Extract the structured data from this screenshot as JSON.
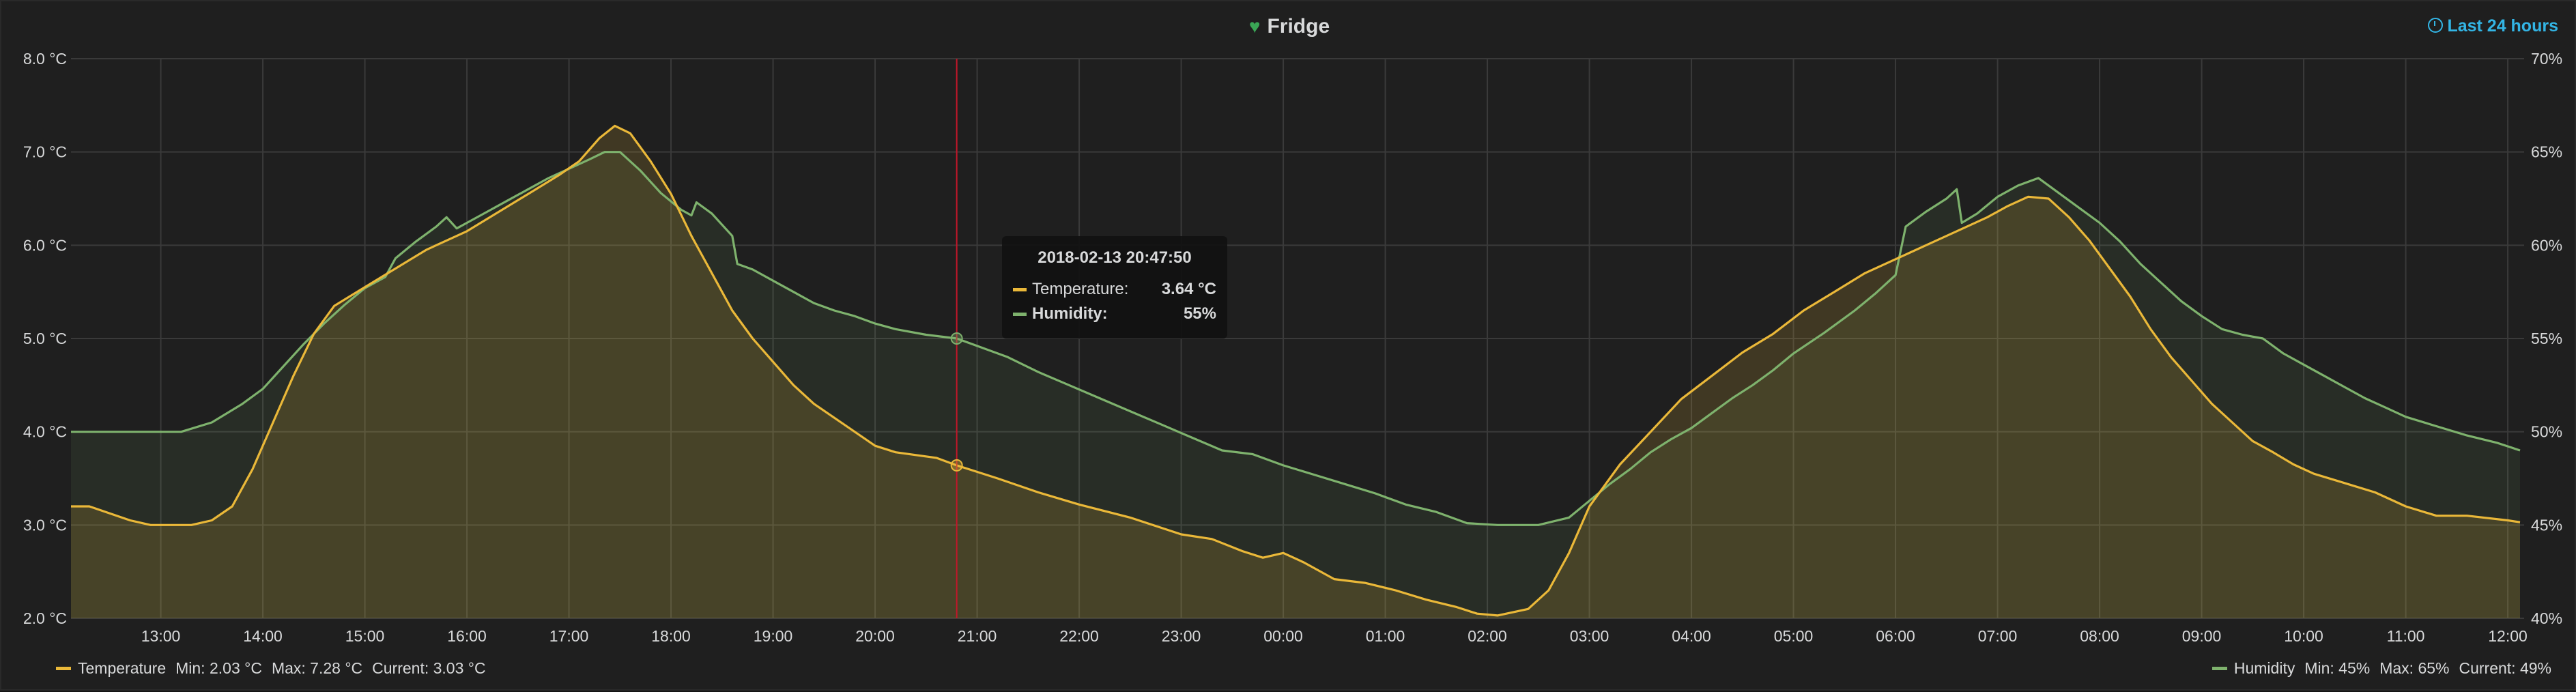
{
  "panel": {
    "title": "Fridge",
    "time_range": "Last 24 hours"
  },
  "colors": {
    "temperature": "#eab839",
    "humidity": "#7eb26d",
    "cursor": "#c4162a",
    "heart": "#3aa655",
    "link": "#33b5e5"
  },
  "tooltip": {
    "time": "2018-02-13 20:47:50",
    "temperature_label": "Temperature:",
    "temperature_value": "3.64 °C",
    "humidity_label": "Humidity:",
    "humidity_value": "55%"
  },
  "legend": {
    "temperature": {
      "name": "Temperature",
      "min": "Min: 2.03 °C",
      "max": "Max: 7.28 °C",
      "current": "Current: 3.03 °C"
    },
    "humidity": {
      "name": "Humidity",
      "min": "Min: 45%",
      "max": "Max: 65%",
      "current": "Current: 49%"
    }
  },
  "chart_data": {
    "type": "area",
    "title": "Fridge",
    "x_unit": "hours since 12:00",
    "x_range": [
      0.12,
      24.26
    ],
    "y_left": {
      "unit": "°C",
      "range": [
        2,
        8
      ],
      "ticks": [
        "2.0 °C",
        "3.0 °C",
        "4.0 °C",
        "5.0 °C",
        "6.0 °C",
        "7.0 °C",
        "8.0 °C"
      ]
    },
    "y_right": {
      "unit": "%",
      "range": [
        40,
        70
      ],
      "ticks": [
        "40%",
        "45%",
        "50%",
        "55%",
        "60%",
        "65%",
        "70%"
      ]
    },
    "x_ticks": [
      {
        "x": 1,
        "label": "13:00"
      },
      {
        "x": 2,
        "label": "14:00"
      },
      {
        "x": 3,
        "label": "15:00"
      },
      {
        "x": 4,
        "label": "16:00"
      },
      {
        "x": 5,
        "label": "17:00"
      },
      {
        "x": 6,
        "label": "18:00"
      },
      {
        "x": 7,
        "label": "19:00"
      },
      {
        "x": 8,
        "label": "20:00"
      },
      {
        "x": 9,
        "label": "21:00"
      },
      {
        "x": 10,
        "label": "22:00"
      },
      {
        "x": 11,
        "label": "23:00"
      },
      {
        "x": 12,
        "label": "00:00"
      },
      {
        "x": 13,
        "label": "01:00"
      },
      {
        "x": 14,
        "label": "02:00"
      },
      {
        "x": 15,
        "label": "03:00"
      },
      {
        "x": 16,
        "label": "04:00"
      },
      {
        "x": 17,
        "label": "05:00"
      },
      {
        "x": 18,
        "label": "06:00"
      },
      {
        "x": 19,
        "label": "07:00"
      },
      {
        "x": 20,
        "label": "08:00"
      },
      {
        "x": 21,
        "label": "09:00"
      },
      {
        "x": 22,
        "label": "10:00"
      },
      {
        "x": 23,
        "label": "11:00"
      },
      {
        "x": 24,
        "label": "12:00"
      }
    ],
    "cursor_x": 8.8,
    "series": [
      {
        "name": "Temperature",
        "axis": "left",
        "points": [
          [
            0.12,
            3.2
          ],
          [
            0.3,
            3.2
          ],
          [
            0.7,
            3.05
          ],
          [
            0.9,
            3.0
          ],
          [
            1.3,
            3.0
          ],
          [
            1.5,
            3.05
          ],
          [
            1.7,
            3.2
          ],
          [
            1.9,
            3.6
          ],
          [
            2.1,
            4.1
          ],
          [
            2.3,
            4.6
          ],
          [
            2.5,
            5.05
          ],
          [
            2.7,
            5.35
          ],
          [
            3.0,
            5.55
          ],
          [
            3.3,
            5.75
          ],
          [
            3.6,
            5.95
          ],
          [
            4.0,
            6.15
          ],
          [
            4.3,
            6.35
          ],
          [
            4.6,
            6.55
          ],
          [
            4.9,
            6.75
          ],
          [
            5.1,
            6.9
          ],
          [
            5.3,
            7.15
          ],
          [
            5.45,
            7.28
          ],
          [
            5.6,
            7.2
          ],
          [
            5.8,
            6.9
          ],
          [
            6.0,
            6.55
          ],
          [
            6.2,
            6.1
          ],
          [
            6.4,
            5.7
          ],
          [
            6.6,
            5.3
          ],
          [
            6.8,
            5.0
          ],
          [
            7.0,
            4.75
          ],
          [
            7.2,
            4.5
          ],
          [
            7.4,
            4.3
          ],
          [
            7.6,
            4.15
          ],
          [
            7.8,
            4.0
          ],
          [
            8.0,
            3.85
          ],
          [
            8.2,
            3.78
          ],
          [
            8.4,
            3.75
          ],
          [
            8.6,
            3.72
          ],
          [
            8.8,
            3.64
          ],
          [
            9.2,
            3.5
          ],
          [
            9.6,
            3.35
          ],
          [
            10.0,
            3.22
          ],
          [
            10.5,
            3.08
          ],
          [
            11.0,
            2.9
          ],
          [
            11.3,
            2.85
          ],
          [
            11.6,
            2.72
          ],
          [
            11.8,
            2.65
          ],
          [
            12.0,
            2.7
          ],
          [
            12.2,
            2.6
          ],
          [
            12.5,
            2.42
          ],
          [
            12.8,
            2.38
          ],
          [
            13.1,
            2.3
          ],
          [
            13.4,
            2.2
          ],
          [
            13.7,
            2.12
          ],
          [
            13.9,
            2.05
          ],
          [
            14.1,
            2.03
          ],
          [
            14.4,
            2.1
          ],
          [
            14.6,
            2.3
          ],
          [
            14.8,
            2.7
          ],
          [
            15.0,
            3.2
          ],
          [
            15.3,
            3.65
          ],
          [
            15.6,
            4.0
          ],
          [
            15.9,
            4.35
          ],
          [
            16.2,
            4.6
          ],
          [
            16.5,
            4.85
          ],
          [
            16.8,
            5.05
          ],
          [
            17.1,
            5.3
          ],
          [
            17.4,
            5.5
          ],
          [
            17.7,
            5.7
          ],
          [
            18.0,
            5.85
          ],
          [
            18.3,
            6.0
          ],
          [
            18.6,
            6.15
          ],
          [
            18.9,
            6.3
          ],
          [
            19.1,
            6.42
          ],
          [
            19.3,
            6.52
          ],
          [
            19.5,
            6.5
          ],
          [
            19.7,
            6.3
          ],
          [
            19.9,
            6.05
          ],
          [
            20.1,
            5.75
          ],
          [
            20.3,
            5.45
          ],
          [
            20.5,
            5.1
          ],
          [
            20.7,
            4.8
          ],
          [
            20.9,
            4.55
          ],
          [
            21.1,
            4.3
          ],
          [
            21.3,
            4.1
          ],
          [
            21.5,
            3.9
          ],
          [
            21.7,
            3.78
          ],
          [
            21.9,
            3.65
          ],
          [
            22.1,
            3.55
          ],
          [
            22.4,
            3.45
          ],
          [
            22.7,
            3.35
          ],
          [
            23.0,
            3.2
          ],
          [
            23.3,
            3.1
          ],
          [
            23.6,
            3.1
          ],
          [
            24.0,
            3.05
          ],
          [
            24.12,
            3.03
          ]
        ]
      },
      {
        "name": "Humidity",
        "axis": "right",
        "points": [
          [
            0.12,
            50
          ],
          [
            0.6,
            50
          ],
          [
            1.2,
            50
          ],
          [
            1.5,
            50.5
          ],
          [
            1.8,
            51.5
          ],
          [
            2.0,
            52.3
          ],
          [
            2.2,
            53.5
          ],
          [
            2.4,
            54.7
          ],
          [
            2.6,
            55.8
          ],
          [
            2.8,
            56.8
          ],
          [
            3.0,
            57.7
          ],
          [
            3.2,
            58.3
          ],
          [
            3.3,
            59.3
          ],
          [
            3.5,
            60.2
          ],
          [
            3.7,
            61.0
          ],
          [
            3.8,
            61.5
          ],
          [
            3.9,
            60.9
          ],
          [
            4.0,
            61.2
          ],
          [
            4.2,
            61.8
          ],
          [
            4.4,
            62.4
          ],
          [
            4.6,
            63.0
          ],
          [
            4.8,
            63.6
          ],
          [
            5.0,
            64.1
          ],
          [
            5.2,
            64.6
          ],
          [
            5.35,
            65.0
          ],
          [
            5.5,
            65.0
          ],
          [
            5.7,
            64.0
          ],
          [
            5.9,
            62.8
          ],
          [
            6.1,
            61.9
          ],
          [
            6.2,
            61.6
          ],
          [
            6.25,
            62.3
          ],
          [
            6.4,
            61.7
          ],
          [
            6.6,
            60.5
          ],
          [
            6.65,
            59.0
          ],
          [
            6.8,
            58.7
          ],
          [
            7.0,
            58.1
          ],
          [
            7.2,
            57.5
          ],
          [
            7.4,
            56.9
          ],
          [
            7.6,
            56.5
          ],
          [
            7.8,
            56.2
          ],
          [
            8.0,
            55.8
          ],
          [
            8.2,
            55.5
          ],
          [
            8.5,
            55.2
          ],
          [
            8.8,
            55.0
          ],
          [
            9.0,
            54.6
          ],
          [
            9.3,
            54.0
          ],
          [
            9.6,
            53.2
          ],
          [
            9.9,
            52.5
          ],
          [
            10.2,
            51.8
          ],
          [
            10.5,
            51.1
          ],
          [
            10.8,
            50.4
          ],
          [
            11.1,
            49.7
          ],
          [
            11.4,
            49.0
          ],
          [
            11.7,
            48.8
          ],
          [
            12.0,
            48.2
          ],
          [
            12.3,
            47.7
          ],
          [
            12.6,
            47.2
          ],
          [
            12.9,
            46.7
          ],
          [
            13.2,
            46.1
          ],
          [
            13.5,
            45.7
          ],
          [
            13.8,
            45.1
          ],
          [
            14.1,
            45.0
          ],
          [
            14.5,
            45.0
          ],
          [
            14.8,
            45.4
          ],
          [
            15.0,
            46.3
          ],
          [
            15.2,
            47.2
          ],
          [
            15.4,
            48.0
          ],
          [
            15.6,
            48.9
          ],
          [
            15.8,
            49.6
          ],
          [
            16.0,
            50.2
          ],
          [
            16.2,
            51.0
          ],
          [
            16.4,
            51.8
          ],
          [
            16.6,
            52.5
          ],
          [
            16.8,
            53.3
          ],
          [
            17.0,
            54.2
          ],
          [
            17.3,
            55.3
          ],
          [
            17.6,
            56.5
          ],
          [
            17.8,
            57.4
          ],
          [
            18.0,
            58.4
          ],
          [
            18.1,
            61.0
          ],
          [
            18.3,
            61.8
          ],
          [
            18.5,
            62.5
          ],
          [
            18.6,
            63.0
          ],
          [
            18.65,
            61.2
          ],
          [
            18.8,
            61.7
          ],
          [
            19.0,
            62.6
          ],
          [
            19.2,
            63.2
          ],
          [
            19.4,
            63.6
          ],
          [
            19.6,
            62.8
          ],
          [
            19.8,
            62.0
          ],
          [
            20.0,
            61.2
          ],
          [
            20.2,
            60.2
          ],
          [
            20.4,
            59.0
          ],
          [
            20.6,
            58.0
          ],
          [
            20.8,
            57.0
          ],
          [
            21.0,
            56.2
          ],
          [
            21.2,
            55.5
          ],
          [
            21.4,
            55.2
          ],
          [
            21.6,
            55.0
          ],
          [
            21.8,
            54.2
          ],
          [
            22.0,
            53.6
          ],
          [
            22.2,
            53.0
          ],
          [
            22.4,
            52.4
          ],
          [
            22.6,
            51.8
          ],
          [
            22.8,
            51.3
          ],
          [
            23.0,
            50.8
          ],
          [
            23.3,
            50.3
          ],
          [
            23.6,
            49.8
          ],
          [
            23.9,
            49.4
          ],
          [
            24.12,
            49.0
          ]
        ]
      }
    ]
  }
}
